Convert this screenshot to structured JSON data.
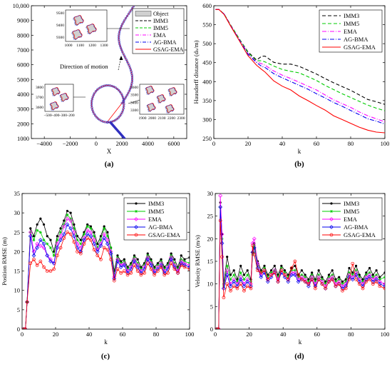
{
  "chart_data": [
    {
      "id": "a",
      "type": "scatter",
      "caption": "(a)",
      "xlabel": "X",
      "ylabel": "",
      "xlim": [
        -5000,
        7000
      ],
      "ylim": [
        1000,
        10000
      ],
      "xticks": [
        -4000,
        -2000,
        0,
        2000,
        4000,
        6000
      ],
      "xtick_labels": [
        "−4000",
        "−2000",
        "0",
        "2000",
        "4000",
        "6000"
      ],
      "yticks": [
        1000,
        2000,
        3000,
        4000,
        5000,
        6000,
        7000,
        8000,
        9000,
        10000
      ],
      "ytick_labels": [
        "1000",
        "2000",
        "3000",
        "4000",
        "5000",
        "6000",
        "7000",
        "8000",
        "9000",
        "10,000"
      ],
      "legend": [
        "Object",
        "IMM3",
        "IMM5",
        "EMA",
        "AG-BMA",
        "GSAG-EMA"
      ],
      "legend_position": "top-right",
      "annotation": "Direction of motion",
      "circle_center": [
        900,
        3350
      ],
      "circle_radius": 1250,
      "inset_upper": {
        "xticks": [
          "1000",
          "1100",
          "1200",
          "1300"
        ],
        "yticks": [
          "9500",
          "9400",
          "9300"
        ]
      },
      "inset_left": {
        "xticks": [
          "−500",
          "−400",
          "−300",
          "−200"
        ],
        "yticks": [
          "3800",
          "3700",
          "3600"
        ]
      },
      "inset_right": {
        "xticks": [
          "1900",
          "2000",
          "2100",
          "2200",
          "2300"
        ],
        "yticks": [
          "3600",
          "3500",
          "3400",
          "3300"
        ]
      }
    },
    {
      "id": "b",
      "type": "line",
      "caption": "(b)",
      "xlabel": "k",
      "ylabel": "Hausdorff distance (d_H/m)",
      "xlim": [
        0,
        100
      ],
      "ylim": [
        250,
        600
      ],
      "xticks": [
        0,
        20,
        40,
        60,
        80,
        100
      ],
      "yticks": [
        250,
        300,
        350,
        400,
        450,
        500,
        550,
        600
      ],
      "legend_position": "top-right",
      "x": [
        1,
        3,
        6,
        10,
        15,
        20,
        25,
        28,
        30,
        35,
        40,
        45,
        50,
        55,
        60,
        65,
        70,
        75,
        80,
        85,
        90,
        95,
        100
      ],
      "series": [
        {
          "name": "IMM3",
          "color": "#000000",
          "dash": "5,3",
          "values": [
            590,
            590,
            578,
            548,
            512,
            478,
            457,
            467,
            467,
            451,
            446,
            446,
            440,
            430,
            420,
            408,
            397,
            387,
            377,
            365,
            353,
            347,
            340
          ]
        },
        {
          "name": "IMM5",
          "color": "#00cc00",
          "dash": "5,3",
          "values": [
            590,
            590,
            578,
            548,
            512,
            476,
            455,
            455,
            452,
            441,
            432,
            427,
            423,
            413,
            403,
            390,
            379,
            368,
            358,
            348,
            338,
            330,
            323
          ]
        },
        {
          "name": "EMA",
          "color": "#ff00ff",
          "dash": "6,2,1,2",
          "values": [
            590,
            590,
            578,
            547,
            510,
            474,
            452,
            447,
            443,
            428,
            417,
            408,
            398,
            388,
            378,
            365,
            352,
            342,
            332,
            320,
            310,
            302,
            294
          ]
        },
        {
          "name": "AG-BMA",
          "color": "#0000ee",
          "dash": "6,2,1,2",
          "values": [
            590,
            590,
            578,
            546,
            509,
            472,
            450,
            440,
            437,
            421,
            410,
            400,
            390,
            380,
            368,
            357,
            345,
            335,
            324,
            313,
            302,
            296,
            288
          ]
        },
        {
          "name": "GSAG-EMA",
          "color": "#ff0000",
          "dash": "",
          "values": [
            590,
            590,
            577,
            545,
            507,
            468,
            443,
            432,
            425,
            402,
            388,
            378,
            362,
            350,
            337,
            325,
            310,
            300,
            290,
            280,
            272,
            267,
            265
          ]
        }
      ]
    },
    {
      "id": "c",
      "type": "line",
      "caption": "(c)",
      "xlabel": "k",
      "ylabel": "Position RMSE (m)",
      "xlim": [
        0,
        100
      ],
      "ylim": [
        0,
        35
      ],
      "xticks": [
        0,
        20,
        40,
        60,
        80,
        100
      ],
      "yticks": [
        0,
        5,
        10,
        15,
        20,
        25,
        30,
        35
      ],
      "legend_position": "top-right",
      "x": [
        1,
        2,
        3,
        5,
        7,
        9,
        11,
        13,
        15,
        17,
        19,
        21,
        23,
        25,
        27,
        29,
        31,
        33,
        35,
        37,
        39,
        41,
        43,
        45,
        47,
        49,
        51,
        53,
        55,
        57,
        59,
        61,
        63,
        65,
        67,
        69,
        71,
        73,
        75,
        77,
        79,
        81,
        83,
        85,
        87,
        89,
        91,
        93,
        95,
        97,
        100
      ],
      "series": [
        {
          "name": "IMM3",
          "color": "#000000",
          "marker": "dot",
          "values": [
            0,
            0,
            7,
            26,
            24,
            27,
            28.5,
            27,
            24,
            23,
            20,
            24,
            26,
            28,
            30.5,
            30,
            27,
            24,
            23,
            25,
            27,
            26.5,
            25,
            22,
            24,
            26.5,
            25,
            21,
            15,
            19,
            17.5,
            18,
            16,
            17,
            19,
            18,
            16,
            17,
            19.5,
            18,
            16,
            17,
            18,
            16,
            17,
            19.5,
            18,
            16,
            19,
            18,
            18.5
          ]
        },
        {
          "name": "IMM5",
          "color": "#00cc00",
          "marker": "star",
          "values": [
            0,
            0,
            7,
            25,
            23,
            25.5,
            25,
            23,
            22,
            21,
            19,
            23,
            25,
            27,
            29.5,
            28.5,
            26,
            23,
            22,
            24.5,
            26.5,
            26,
            24,
            21,
            23,
            26,
            24,
            21,
            14,
            18.5,
            17,
            17.5,
            15.5,
            16.5,
            18.5,
            17,
            15.5,
            16.5,
            19,
            17.5,
            15.5,
            16.5,
            17.5,
            15.5,
            16.5,
            19,
            17,
            15.5,
            18,
            17.5,
            17
          ]
        },
        {
          "name": "EMA",
          "color": "#ff00ff",
          "marker": "diamond",
          "values": [
            0,
            0,
            7,
            25,
            20,
            22,
            21.5,
            21,
            19,
            18,
            17,
            22,
            24,
            26.5,
            28.5,
            28,
            25,
            22,
            21,
            23.5,
            25.5,
            25,
            23,
            20.5,
            22,
            24.5,
            23,
            20,
            13.5,
            18,
            16.5,
            17,
            15,
            16,
            18,
            16.5,
            15,
            16,
            18.5,
            17,
            15,
            16,
            17,
            15,
            16,
            18.5,
            16.5,
            15,
            17.5,
            17,
            16.5
          ]
        },
        {
          "name": "AG-BMA",
          "color": "#0000ee",
          "marker": "diamond",
          "values": [
            0,
            0,
            7,
            24,
            19,
            21,
            23,
            22,
            19,
            17.5,
            17,
            21,
            23,
            24.5,
            27,
            26,
            24,
            21,
            20,
            23,
            24.5,
            24,
            22,
            20,
            21.5,
            23.5,
            22,
            19.5,
            13,
            17.5,
            16,
            16.5,
            14.5,
            15.5,
            17.5,
            16,
            14.5,
            15.5,
            18,
            16.5,
            14.5,
            15.5,
            16.5,
            14.5,
            15.5,
            18,
            16,
            14.5,
            17,
            16.5,
            16
          ]
        },
        {
          "name": "GSAG-EMA",
          "color": "#ff0000",
          "marker": "circle",
          "values": [
            0,
            0,
            7,
            17,
            18,
            16.5,
            17.5,
            16,
            15,
            15,
            15.5,
            19,
            21,
            23.5,
            25,
            24.5,
            22.5,
            20,
            19.5,
            22,
            23.5,
            23,
            20.5,
            19,
            18,
            21,
            20.5,
            18,
            12.5,
            15.5,
            14.5,
            15,
            14,
            14.5,
            16.5,
            15,
            14,
            14.5,
            17,
            15.5,
            14,
            15,
            16,
            14,
            14.5,
            17,
            15.5,
            14.5,
            16.5,
            16,
            15.5
          ]
        }
      ]
    },
    {
      "id": "d",
      "type": "line",
      "caption": "(d)",
      "xlabel": "k",
      "ylabel": "Velocity RMSE (m/s)",
      "xlim": [
        0,
        100
      ],
      "ylim": [
        0,
        30
      ],
      "xticks": [
        0,
        20,
        40,
        60,
        80,
        100
      ],
      "yticks": [
        0,
        5,
        10,
        15,
        20,
        25,
        30
      ],
      "legend_position": "top-right",
      "x": [
        1,
        2,
        3,
        4,
        5,
        7,
        9,
        11,
        13,
        15,
        17,
        19,
        21,
        22,
        23,
        25,
        27,
        29,
        31,
        33,
        35,
        37,
        39,
        41,
        43,
        45,
        47,
        49,
        51,
        53,
        55,
        57,
        59,
        61,
        63,
        65,
        67,
        69,
        71,
        73,
        75,
        77,
        79,
        81,
        83,
        85,
        87,
        89,
        91,
        93,
        95,
        97,
        100
      ],
      "series": [
        {
          "name": "IMM3",
          "color": "#000000",
          "marker": "dot",
          "values": [
            0,
            0,
            28,
            21,
            10,
            16,
            12,
            13,
            11,
            14,
            12,
            13,
            11,
            17,
            19,
            15,
            13,
            14,
            12,
            13,
            14,
            12,
            14,
            13,
            12,
            13.5,
            14,
            12,
            13,
            12,
            11,
            12.5,
            11,
            13,
            11.5,
            10.5,
            12,
            13,
            11,
            11.5,
            10.5,
            11,
            13.5,
            12.5,
            14,
            12,
            11,
            12.5,
            13.5,
            12,
            13,
            11.5,
            12.5
          ]
        },
        {
          "name": "IMM5",
          "color": "#00cc00",
          "marker": "star",
          "values": [
            0,
            0,
            27,
            20,
            9.5,
            14,
            11,
            12,
            10.5,
            12.5,
            11,
            12,
            10.5,
            16.5,
            18.5,
            14,
            12.5,
            13.5,
            11.5,
            12.5,
            13,
            11.5,
            13.5,
            12.5,
            11.5,
            13,
            13,
            11.5,
            12,
            11.5,
            10.5,
            12,
            10.5,
            12,
            11,
            10,
            11.5,
            12,
            10.5,
            11,
            10,
            10.5,
            12.5,
            12,
            13,
            11.5,
            10.5,
            12,
            12.5,
            11.5,
            12,
            11,
            11.5
          ]
        },
        {
          "name": "EMA",
          "color": "#ff00ff",
          "marker": "diamond",
          "values": [
            0,
            0,
            29.5,
            21,
            9,
            13,
            10,
            11,
            10,
            11.5,
            10,
            11,
            10,
            19,
            20,
            14.5,
            12,
            13,
            11,
            12,
            13,
            11,
            13,
            12,
            11,
            12.5,
            12.5,
            11,
            11.5,
            11,
            10,
            11.5,
            10,
            11.5,
            10.5,
            9.5,
            11,
            11.5,
            10,
            10.5,
            9.5,
            10,
            12,
            11.5,
            12.5,
            11,
            10,
            11.5,
            12,
            11,
            11.5,
            10.5,
            10
          ]
        },
        {
          "name": "AG-BMA",
          "color": "#0000ee",
          "marker": "diamond",
          "values": [
            0,
            0,
            27,
            19,
            9,
            12,
            9.5,
            10.5,
            9.5,
            11,
            9.5,
            10.5,
            9.5,
            17,
            18,
            13.5,
            11.5,
            12.5,
            10.5,
            11.5,
            12.5,
            10.5,
            12.5,
            11.5,
            10.5,
            12,
            12,
            10.5,
            11,
            10.5,
            9.5,
            11,
            9.5,
            11,
            10,
            9,
            10.5,
            11,
            9.5,
            10,
            9,
            9.5,
            11.5,
            11,
            12,
            10.5,
            9.5,
            11,
            11.5,
            10.5,
            11,
            10,
            9.5
          ]
        },
        {
          "name": "GSAG-EMA",
          "color": "#ff0000",
          "marker": "circle",
          "values": [
            0,
            0,
            24,
            16,
            7,
            10,
            8.5,
            9.5,
            9,
            10,
            8.5,
            9.5,
            9,
            18.5,
            16.5,
            13,
            12.5,
            13,
            11,
            12,
            12.5,
            10.5,
            13,
            12,
            11,
            13.5,
            15,
            12,
            11,
            10.5,
            10,
            11,
            9,
            11,
            10,
            9,
            10.5,
            11,
            9.5,
            10,
            8.5,
            9,
            11,
            14.5,
            11,
            10,
            9,
            10.5,
            11,
            10,
            10.5,
            9.5,
            9
          ]
        }
      ]
    }
  ]
}
